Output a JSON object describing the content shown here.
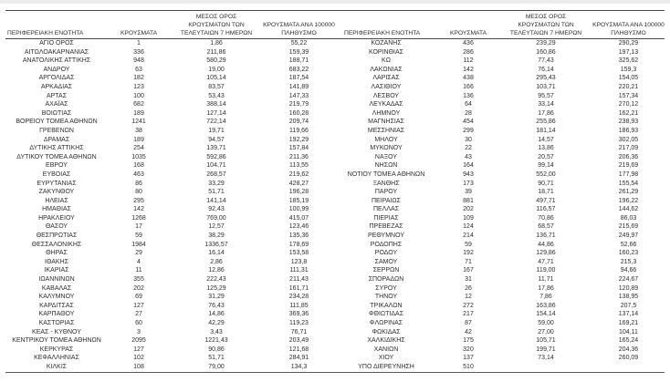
{
  "colors": {
    "background": "#ffffff",
    "text": "#2e2e2e",
    "rule_line": "#4a4a4a",
    "top_strip": "#ececec"
  },
  "headers": {
    "region": "ΠΕΡΙΦΕΡΕΙΑΚΗ ΕΝΟΤΗΤΑ",
    "cases": "ΚΡΟΥΣΜΑΤΑ",
    "avg7": "ΜΕΣΟΣ ΟΡΟΣ\nΚΡΟΥΣΜΑΤΩΝ ΤΩΝ\nΤΕΛΕΥΤΑΙΩΝ 7 ΗΜΕΡΩΝ",
    "per100k": "ΚΡΟΥΣΜΑΤΑ ΑΝΑ 100000\nΠΛΗΘΥΣΜΟ"
  },
  "tables": [
    {
      "rows": [
        [
          "ΑΓΙΟ ΟΡΟΣ",
          "1",
          "1,86",
          "55,22"
        ],
        [
          "ΑΙΤΩΛΟΑΚΑΡΝΑΝΙΑΣ",
          "336",
          "211,86",
          "159,39"
        ],
        [
          "ΑΝΑΤΟΛΙΚΗΣ ΑΤΤΙΚΗΣ",
          "948",
          "580,29",
          "188,71"
        ],
        [
          "ΑΝΔΡΟΥ",
          "63",
          "19,00",
          "683,22"
        ],
        [
          "ΑΡΓΟΛΙΔΑΣ",
          "182",
          "105,14",
          "187,54"
        ],
        [
          "ΑΡΚΑΔΙΑΣ",
          "123",
          "83,57",
          "141,89"
        ],
        [
          "ΑΡΤΑΣ",
          "100",
          "53,43",
          "147,33"
        ],
        [
          "ΑΧΑΪΑΣ",
          "682",
          "388,14",
          "219,79"
        ],
        [
          "ΒΟΙΩΤΙΑΣ",
          "189",
          "127,14",
          "160,28"
        ],
        [
          "ΒΟΡΕΙΟΥ ΤΟΜΕΑ ΑΘΗΝΩΝ",
          "1241",
          "722,14",
          "209,74"
        ],
        [
          "ΓΡΕΒΕΝΩΝ",
          "38",
          "19,71",
          "119,66"
        ],
        [
          "ΔΡΑΜΑΣ",
          "189",
          "94,57",
          "192,29"
        ],
        [
          "ΔΥΤΙΚΗΣ ΑΤΤΙΚΗΣ",
          "254",
          "139,71",
          "157,84"
        ],
        [
          "ΔΥΤΙΚΟΥ ΤΟΜΕΑ ΑΘΗΝΩΝ",
          "1035",
          "592,86",
          "211,36"
        ],
        [
          "ΕΒΡΟΥ",
          "168",
          "104,71",
          "113,55"
        ],
        [
          "ΕΥΒΟΙΑΣ",
          "463",
          "268,57",
          "219,62"
        ],
        [
          "ΕΥΡΥΤΑΝΙΑΣ",
          "86",
          "33,29",
          "428,27"
        ],
        [
          "ΖΑΚΥΝΘΟΥ",
          "80",
          "51,71",
          "196,28"
        ],
        [
          "ΗΛΕΙΑΣ",
          "295",
          "141,14",
          "185,19"
        ],
        [
          "ΗΜΑΘΙΑΣ",
          "142",
          "92,43",
          "100,99"
        ],
        [
          "ΗΡΑΚΛΕΙΟΥ",
          "1268",
          "769,00",
          "415,07"
        ],
        [
          "ΘΑΣΟΥ",
          "17",
          "12,57",
          "123,46"
        ],
        [
          "ΘΕΣΠΡΩΤΙΑΣ",
          "59",
          "38,29",
          "135,36"
        ],
        [
          "ΘΕΣΣΑΛΟΝΙΚΗΣ",
          "1984",
          "1336,57",
          "178,69"
        ],
        [
          "ΘΗΡΑΣ",
          "29",
          "16,14",
          "153,58"
        ],
        [
          "ΙΘΑΚΗΣ",
          "4",
          "2,86",
          "123,8"
        ],
        [
          "ΙΚΑΡΙΑΣ",
          "11",
          "12,86",
          "111,31"
        ],
        [
          "ΙΩΑΝΝΙΝΩΝ",
          "355",
          "222,43",
          "211,43"
        ],
        [
          "ΚΑΒΑΛΑΣ",
          "202",
          "125,29",
          "161,71"
        ],
        [
          "ΚΑΛΥΜΝΟΥ",
          "69",
          "31,29",
          "234,28"
        ],
        [
          "ΚΑΡΔΙΤΣΑΣ",
          "127",
          "76,43",
          "111,85"
        ],
        [
          "ΚΑΡΠΑΘΟΥ",
          "27",
          "14,86",
          "369,36"
        ],
        [
          "ΚΑΣΤΟΡΙΑΣ",
          "60",
          "42,29",
          "119,23"
        ],
        [
          "ΚΕΑΣ - ΚΥΘΝΟΥ",
          "3",
          "3,43",
          "76,71"
        ],
        [
          "ΚΕΝΤΡΙΚΟΥ ΤΟΜΕΑ ΑΘΗΝΩΝ",
          "2095",
          "1221,43",
          "203,49"
        ],
        [
          "ΚΕΡΚΥΡΑΣ",
          "127",
          "90,86",
          "121,68"
        ],
        [
          "ΚΕΦΑΛΛΗΝΙΑΣ",
          "102",
          "51,71",
          "284,91"
        ],
        [
          "ΚΙΛΚΙΣ",
          "108",
          "79,00",
          "134,3"
        ]
      ]
    },
    {
      "rows": [
        [
          "ΚΟΖΑΝΗΣ",
          "436",
          "239,29",
          "290,29"
        ],
        [
          "ΚΟΡΙΝΘΙΑΣ",
          "286",
          "160,86",
          "197,13"
        ],
        [
          "ΚΩ",
          "112",
          "77,43",
          "325,62"
        ],
        [
          "ΛΑΚΩΝΙΑΣ",
          "142",
          "76,14",
          "159,3"
        ],
        [
          "ΛΑΡΙΣΑΣ",
          "438",
          "295,43",
          "154,05"
        ],
        [
          "ΛΑΣΙΘΙΟΥ",
          "166",
          "103,71",
          "220,21"
        ],
        [
          "ΛΕΣΒΟΥ",
          "136",
          "95,57",
          "157,34"
        ],
        [
          "ΛΕΥΚΑΔΑΣ",
          "64",
          "33,14",
          "270,12"
        ],
        [
          "ΛΗΜΝΟΥ",
          "28",
          "17,86",
          "162,21"
        ],
        [
          "ΜΑΓΝΗΣΙΑΣ",
          "454",
          "255,86",
          "238,93"
        ],
        [
          "ΜΕΣΣΗΝΙΑΣ",
          "299",
          "181,14",
          "186,93"
        ],
        [
          "ΜΗΛΟΥ",
          "30",
          "14,57",
          "302,05"
        ],
        [
          "ΜΥΚΟΝΟΥ",
          "22",
          "13,86",
          "217,09"
        ],
        [
          "ΝΑΞΟΥ",
          "43",
          "20,57",
          "206,36"
        ],
        [
          "ΝΗΣΩΝ",
          "164",
          "99,14",
          "219,69"
        ],
        [
          "ΝΟΤΙΟΥ ΤΟΜΕΑ ΑΘΗΝΩΝ",
          "943",
          "552,00",
          "177,98"
        ],
        [
          "ΞΑΝΘΗΣ",
          "173",
          "90,71",
          "155,54"
        ],
        [
          "ΠΑΡΟΥ",
          "39",
          "18,71",
          "261,29"
        ],
        [
          "ΠΕΙΡΑΙΩΣ",
          "881",
          "497,71",
          "196,22"
        ],
        [
          "ΠΕΛΛΑΣ",
          "202",
          "116,57",
          "144,62"
        ],
        [
          "ΠΙΕΡΙΑΣ",
          "109",
          "70,86",
          "86,03"
        ],
        [
          "ΠΡΕΒΕΖΑΣ",
          "124",
          "68,57",
          "215,69"
        ],
        [
          "ΡΕΘΥΜΝΟΥ",
          "214",
          "136,71",
          "249,97"
        ],
        [
          "ΡΟΔΟΠΗΣ",
          "59",
          "44,86",
          "52,66"
        ],
        [
          "ΡΟΔΟΥ",
          "192",
          "129,86",
          "160,23"
        ],
        [
          "ΣΑΜΟΥ",
          "71",
          "47,71",
          "215,3"
        ],
        [
          "ΣΕΡΡΩΝ",
          "167",
          "119,00",
          "94,66"
        ],
        [
          "ΣΠΟΡΑΔΩΝ",
          "31",
          "11,71",
          "224,67"
        ],
        [
          "ΣΥΡΟΥ",
          "26",
          "17,86",
          "120,89"
        ],
        [
          "ΤΗΝΟΥ",
          "12",
          "7,86",
          "138,95"
        ],
        [
          "ΤΡΙΚΑΛΩΝ",
          "272",
          "163,86",
          "207,5"
        ],
        [
          "ΦΘΙΩΤΙΔΑΣ",
          "217",
          "154,14",
          "137,14"
        ],
        [
          "ΦΛΩΡΙΝΑΣ",
          "87",
          "59,00",
          "169,21"
        ],
        [
          "ΦΩΚΙΔΑΣ",
          "42",
          "27,00",
          "104,11"
        ],
        [
          "ΧΑΛΚΙΔΙΚΗΣ",
          "175",
          "105,71",
          "165,24"
        ],
        [
          "ΧΑΝΙΩΝ",
          "320",
          "199,71",
          "204,36"
        ],
        [
          "ΧΙΟΥ",
          "137",
          "73,14",
          "260,09"
        ],
        [
          "ΥΠΟ ΔΙΕΡΕΥΝΗΣΗ",
          "510",
          "",
          ""
        ]
      ]
    }
  ]
}
